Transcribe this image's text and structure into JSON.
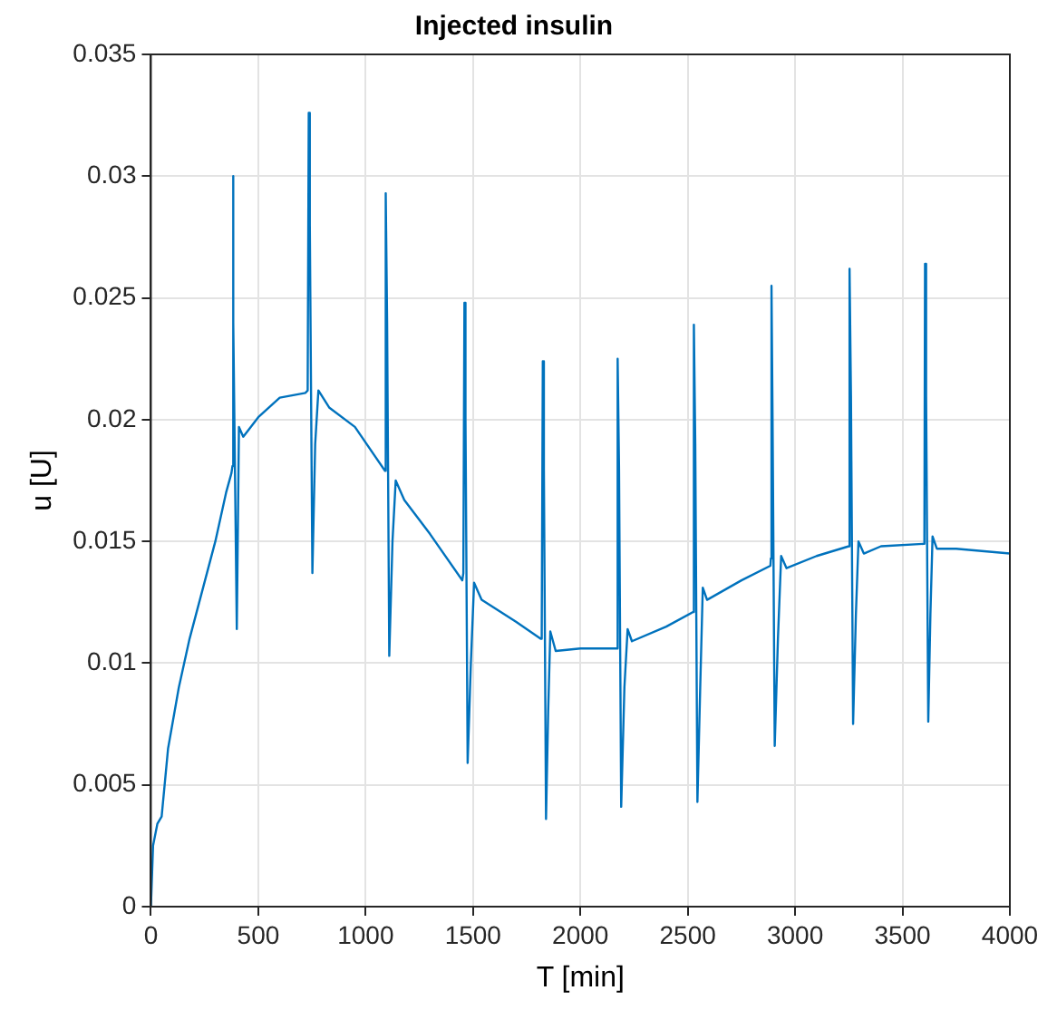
{
  "chart_data": {
    "type": "line",
    "title": "Injected insulin",
    "xlabel": "T [min]",
    "ylabel": "u [U]",
    "x": [
      0,
      10,
      30,
      50,
      80,
      130,
      180,
      240,
      300,
      350,
      375,
      380,
      382,
      385,
      400,
      410,
      430,
      500,
      600,
      720,
      730,
      735,
      740,
      752,
      765,
      780,
      830,
      950,
      1090,
      1092,
      1095,
      1100,
      1110,
      1125,
      1140,
      1180,
      1300,
      1450,
      1455,
      1460,
      1465,
      1475,
      1490,
      1505,
      1540,
      1700,
      1815,
      1820,
      1825,
      1830,
      1840,
      1850,
      1860,
      1885,
      2000,
      2170,
      2172,
      2175,
      2180,
      2190,
      2205,
      2220,
      2240,
      2400,
      2525,
      2527,
      2530,
      2535,
      2545,
      2558,
      2570,
      2590,
      2750,
      2885,
      2887,
      2890,
      2895,
      2905,
      2920,
      2935,
      2960,
      3100,
      3250,
      3252,
      3255,
      3260,
      3270,
      3283,
      3295,
      3320,
      3400,
      3600,
      3602,
      3605,
      3610,
      3620,
      3630,
      3640,
      3660,
      3750,
      4000
    ],
    "series": [
      {
        "color": "#0072bd",
        "values": [
          0,
          0.0025,
          0.0034,
          0.0037,
          0.0065,
          0.009,
          0.011,
          0.013,
          0.015,
          0.017,
          0.0178,
          0.0181,
          0.03,
          0.024,
          0.0114,
          0.0197,
          0.0193,
          0.0201,
          0.0209,
          0.0211,
          0.0212,
          0.0326,
          0.028,
          0.0137,
          0.019,
          0.0212,
          0.0205,
          0.0197,
          0.0179,
          0.0179,
          0.0293,
          0.024,
          0.0103,
          0.015,
          0.0175,
          0.0167,
          0.0153,
          0.0134,
          0.0137,
          0.0248,
          0.02,
          0.0059,
          0.01,
          0.0133,
          0.0126,
          0.0117,
          0.011,
          0.0113,
          0.0224,
          0.018,
          0.0036,
          0.008,
          0.0113,
          0.0105,
          0.0106,
          0.0106,
          0.0106,
          0.0225,
          0.018,
          0.0041,
          0.009,
          0.0114,
          0.0109,
          0.0115,
          0.0121,
          0.0121,
          0.0239,
          0.019,
          0.0043,
          0.009,
          0.0131,
          0.0126,
          0.0134,
          0.014,
          0.0143,
          0.0255,
          0.02,
          0.0066,
          0.011,
          0.0144,
          0.0139,
          0.0144,
          0.0148,
          0.0148,
          0.0262,
          0.021,
          0.0075,
          0.012,
          0.015,
          0.0145,
          0.0148,
          0.0149,
          0.0152,
          0.0264,
          0.021,
          0.0076,
          0.012,
          0.0152,
          0.0147,
          0.0147,
          0.0145
        ]
      }
    ],
    "xlim": [
      0,
      4000
    ],
    "xticks": [
      0,
      500,
      1000,
      1500,
      2000,
      2500,
      3000,
      3500,
      4000
    ],
    "ylim": [
      0,
      0.035
    ],
    "yticks": [
      0,
      0.005,
      0.01,
      0.015,
      0.02,
      0.025,
      0.03,
      0.035
    ],
    "grid": true,
    "legend": false,
    "marker": "none",
    "line_style": "solid"
  }
}
